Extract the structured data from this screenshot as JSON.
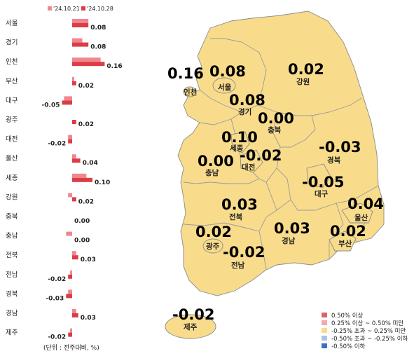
{
  "chart_data": {
    "type": "bar",
    "orientation": "horizontal",
    "categories": [
      "서울",
      "경기",
      "인천",
      "부산",
      "대구",
      "광주",
      "대전",
      "울산",
      "세종",
      "강원",
      "충북",
      "충남",
      "전북",
      "전남",
      "경북",
      "경남",
      "제주"
    ],
    "series": [
      {
        "name": "'24.10.21",
        "color": "#f0878f",
        "values": [
          0.08,
          0.05,
          0.14,
          0.01,
          -0.04,
          0.0,
          -0.02,
          0.02,
          0.07,
          -0.02,
          0.0,
          -0.03,
          0.02,
          -0.01,
          -0.02,
          0.02,
          -0.01
        ]
      },
      {
        "name": "'24.10.28",
        "color": "#dc3c46",
        "values": [
          0.08,
          0.08,
          0.16,
          0.02,
          -0.05,
          0.02,
          -0.02,
          0.04,
          0.1,
          0.02,
          0.0,
          0.0,
          0.03,
          -0.02,
          -0.03,
          0.03,
          -0.02
        ]
      }
    ],
    "value_labels": [
      "0.08",
      "0.08",
      "0.16",
      "0.02",
      "-0.05",
      "0.02",
      "-0.02",
      "0.04",
      "0.10",
      "0.02",
      "0.00",
      "0.00",
      "0.03",
      "-0.02",
      "-0.03",
      "0.03",
      "-0.02"
    ],
    "unit_note": "(단위 : 전주대비, %)",
    "legend_position": "top"
  },
  "map": {
    "regions": [
      {
        "key": "incheon",
        "name": "인천",
        "value": "0.16"
      },
      {
        "key": "seoul",
        "name": "서울",
        "value": "0.08"
      },
      {
        "key": "gangwon",
        "name": "강원",
        "value": "0.02"
      },
      {
        "key": "gyeonggi",
        "name": "경기",
        "value": "0.08"
      },
      {
        "key": "chungbuk",
        "name": "충북",
        "value": "0.00"
      },
      {
        "key": "sejong",
        "name": "세종",
        "value": "0.10"
      },
      {
        "key": "daejeon",
        "name": "대전",
        "value": "-0.02"
      },
      {
        "key": "chungnam",
        "name": "충남",
        "value": "0.00"
      },
      {
        "key": "gyeongbuk",
        "name": "경북",
        "value": "-0.03"
      },
      {
        "key": "daegu",
        "name": "대구",
        "value": "-0.05"
      },
      {
        "key": "jeonbuk",
        "name": "전북",
        "value": "0.03"
      },
      {
        "key": "ulsan",
        "name": "울산",
        "value": "0.04"
      },
      {
        "key": "gwangju",
        "name": "광주",
        "value": "0.02"
      },
      {
        "key": "gyeongnam",
        "name": "경남",
        "value": "0.03"
      },
      {
        "key": "busan",
        "name": "부산",
        "value": "0.02"
      },
      {
        "key": "jeonnam",
        "name": "전남",
        "value": "-0.02"
      },
      {
        "key": "jeju",
        "name": "제주",
        "value": "-0.02"
      }
    ],
    "fill_color": "#f8dc8c",
    "legend": [
      {
        "label": "0.50% 이상",
        "color": "#e06068"
      },
      {
        "label": "0.25% 이상 ~ 0.50% 미만",
        "color": "#f4a8ae"
      },
      {
        "label": "-0.25% 초과 ~ 0.25% 미만",
        "color": "#f8dc8c"
      },
      {
        "label": "-0.50% 초과 ~ -0.25% 이하",
        "color": "#a9c3e6"
      },
      {
        "label": "-0.50% 이하",
        "color": "#3a6fc4"
      }
    ]
  }
}
